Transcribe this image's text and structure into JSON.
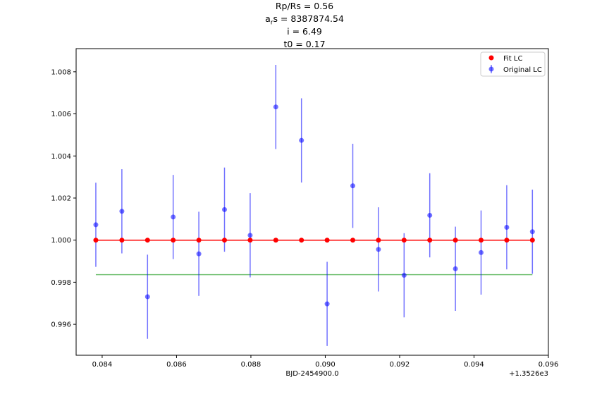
{
  "title": {
    "line1": "Rp/Rs = 0.56",
    "line2_prefix": "a",
    "line2_sub": "r",
    "line2_suffix": "s = 8387874.54",
    "line3": "i = 6.49",
    "line4": "t0 = 0.17"
  },
  "chart_data": {
    "type": "scatter",
    "xlabel": "BJD-2454900.0",
    "x_offset_label": "+1.3526e3",
    "xlim": [
      1352.6833,
      1352.696
    ],
    "ylim": [
      0.99453,
      1.0091
    ],
    "x_ticks": [
      1352.684,
      1352.686,
      1352.688,
      1352.69,
      1352.692,
      1352.694,
      1352.696
    ],
    "x_tick_labels": [
      "0.084",
      "0.086",
      "0.088",
      "0.090",
      "0.092",
      "0.094",
      "0.096"
    ],
    "y_ticks": [
      0.996,
      0.998,
      1.0,
      1.002,
      1.004,
      1.006,
      1.008
    ],
    "y_tick_labels": [
      "0.996",
      "0.998",
      "1.000",
      "1.002",
      "1.004",
      "1.006",
      "1.008"
    ],
    "grid": false,
    "legend_position": "top-right",
    "series": [
      {
        "name": "Fit LC",
        "kind": "line+points",
        "color": "#ff0000",
        "x": [
          1352.68383,
          1352.68453,
          1352.68522,
          1352.68591,
          1352.6866,
          1352.68729,
          1352.68798,
          1352.68867,
          1352.68936,
          1352.69005,
          1352.69074,
          1352.69143,
          1352.69212,
          1352.69281,
          1352.6935,
          1352.69419,
          1352.69488,
          1352.69557
        ],
        "y": [
          1.0,
          1.0,
          1.0,
          1.0,
          1.0,
          1.0,
          1.0,
          1.0,
          1.0,
          1.0,
          1.0,
          1.0,
          1.0,
          1.0,
          1.0,
          1.0,
          1.0,
          1.0
        ]
      },
      {
        "name": "Original LC",
        "kind": "errorbar",
        "color": "#0000ff",
        "alpha": 0.55,
        "x": [
          1352.68383,
          1352.68453,
          1352.68522,
          1352.68591,
          1352.6866,
          1352.68729,
          1352.68798,
          1352.68867,
          1352.68936,
          1352.69005,
          1352.69074,
          1352.69143,
          1352.69212,
          1352.69281,
          1352.6935,
          1352.69419,
          1352.69488,
          1352.69557
        ],
        "y": [
          1.00073,
          1.00137,
          0.99731,
          1.0011,
          0.99935,
          1.00145,
          1.00023,
          1.00633,
          1.00474,
          0.99697,
          1.00258,
          0.99956,
          0.99833,
          1.00118,
          0.99864,
          0.99941,
          1.00061,
          1.0004
        ],
        "yerr": 0.002
      },
      {
        "kind": "line",
        "color": "#66bb66",
        "x": [
          1352.68383,
          1352.69557
        ],
        "y": [
          0.99836,
          0.99836
        ]
      }
    ]
  }
}
